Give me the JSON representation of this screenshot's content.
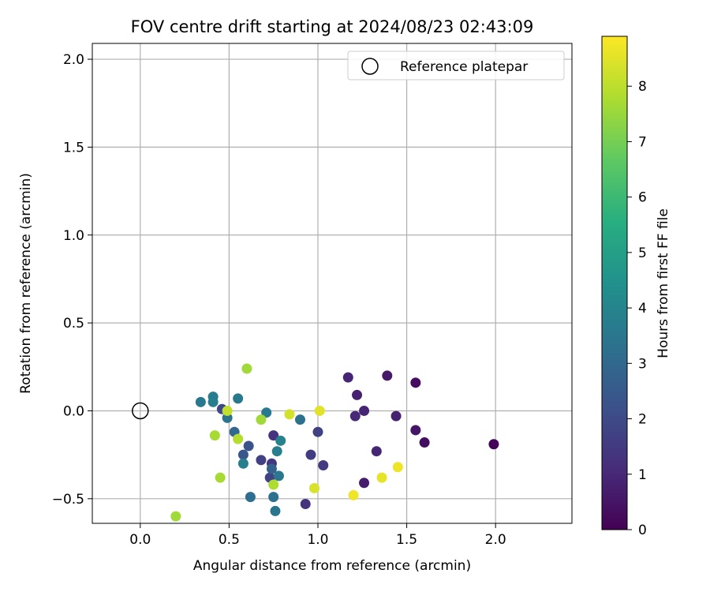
{
  "chart_data": {
    "type": "scatter",
    "title": "FOV centre drift starting at 2024/08/23 02:43:09",
    "xlabel": "Angular distance from reference (arcmin)",
    "ylabel": "Rotation from reference (arcmin)",
    "xlim": [
      -0.27,
      2.43
    ],
    "ylim": [
      -0.64,
      2.09
    ],
    "xticks": [
      "0.0",
      "0.5",
      "1.0",
      "1.5",
      "2.0"
    ],
    "yticks": [
      "−0.5",
      "0.0",
      "0.5",
      "1.0",
      "1.5",
      "2.0"
    ],
    "grid": true,
    "legend": {
      "position": "top-right",
      "entries": [
        "Reference platepar"
      ]
    },
    "colorbar": {
      "label": "Hours from first FF file",
      "range": [
        0,
        8.9
      ],
      "ticks": [
        "0",
        "1",
        "2",
        "3",
        "4",
        "5",
        "6",
        "7",
        "8"
      ],
      "colormap": "viridis"
    },
    "reference_point": {
      "x": 0.0,
      "y": 0.0
    },
    "points": [
      {
        "x": 1.99,
        "y": -0.19,
        "h": 0.1
      },
      {
        "x": 1.6,
        "y": -0.18,
        "h": 0.3
      },
      {
        "x": 1.55,
        "y": 0.16,
        "h": 0.3
      },
      {
        "x": 1.55,
        "y": -0.11,
        "h": 0.5
      },
      {
        "x": 1.39,
        "y": 0.2,
        "h": 0.6
      },
      {
        "x": 1.44,
        "y": -0.03,
        "h": 0.8
      },
      {
        "x": 1.33,
        "y": -0.23,
        "h": 0.9
      },
      {
        "x": 1.26,
        "y": 0.0,
        "h": 0.9
      },
      {
        "x": 1.26,
        "y": -0.41,
        "h": 0.7
      },
      {
        "x": 1.22,
        "y": 0.09,
        "h": 0.8
      },
      {
        "x": 1.21,
        "y": -0.03,
        "h": 1.0
      },
      {
        "x": 1.17,
        "y": 0.19,
        "h": 0.9
      },
      {
        "x": 0.93,
        "y": -0.53,
        "h": 1.3
      },
      {
        "x": 1.03,
        "y": -0.31,
        "h": 1.5
      },
      {
        "x": 0.96,
        "y": -0.25,
        "h": 1.6
      },
      {
        "x": 1.0,
        "y": -0.12,
        "h": 1.7
      },
      {
        "x": 0.75,
        "y": -0.14,
        "h": 1.3
      },
      {
        "x": 0.74,
        "y": -0.3,
        "h": 1.4
      },
      {
        "x": 0.73,
        "y": -0.38,
        "h": 1.8
      },
      {
        "x": 0.68,
        "y": -0.28,
        "h": 1.7
      },
      {
        "x": 0.46,
        "y": 0.01,
        "h": 1.9
      },
      {
        "x": 0.61,
        "y": -0.2,
        "h": 2.3
      },
      {
        "x": 0.58,
        "y": -0.25,
        "h": 2.4
      },
      {
        "x": 0.74,
        "y": -0.33,
        "h": 2.8
      },
      {
        "x": 0.53,
        "y": -0.12,
        "h": 3.0
      },
      {
        "x": 0.62,
        "y": -0.49,
        "h": 3.2
      },
      {
        "x": 0.75,
        "y": -0.49,
        "h": 3.3
      },
      {
        "x": 0.9,
        "y": -0.05,
        "h": 3.3
      },
      {
        "x": 0.49,
        "y": -0.04,
        "h": 3.4
      },
      {
        "x": 0.34,
        "y": 0.05,
        "h": 3.6
      },
      {
        "x": 0.41,
        "y": 0.08,
        "h": 3.7
      },
      {
        "x": 0.41,
        "y": 0.05,
        "h": 3.8
      },
      {
        "x": 0.55,
        "y": 0.07,
        "h": 3.6
      },
      {
        "x": 0.71,
        "y": -0.01,
        "h": 3.6
      },
      {
        "x": 0.78,
        "y": -0.37,
        "h": 3.5
      },
      {
        "x": 0.76,
        "y": -0.57,
        "h": 3.4
      },
      {
        "x": 0.77,
        "y": -0.23,
        "h": 3.8
      },
      {
        "x": 0.58,
        "y": -0.3,
        "h": 3.8
      },
      {
        "x": 0.79,
        "y": -0.17,
        "h": 3.9
      },
      {
        "x": 0.6,
        "y": 0.24,
        "h": 7.6
      },
      {
        "x": 0.42,
        "y": -0.14,
        "h": 7.7
      },
      {
        "x": 0.45,
        "y": -0.38,
        "h": 7.7
      },
      {
        "x": 0.2,
        "y": -0.6,
        "h": 7.6
      },
      {
        "x": 0.55,
        "y": -0.16,
        "h": 7.9
      },
      {
        "x": 0.68,
        "y": -0.05,
        "h": 7.6
      },
      {
        "x": 0.75,
        "y": -0.42,
        "h": 7.8
      },
      {
        "x": 0.49,
        "y": 0.0,
        "h": 8.1
      },
      {
        "x": 0.84,
        "y": -0.02,
        "h": 8.3
      },
      {
        "x": 0.98,
        "y": -0.44,
        "h": 8.4
      },
      {
        "x": 1.01,
        "y": 0.0,
        "h": 8.5
      },
      {
        "x": 1.2,
        "y": -0.48,
        "h": 8.7
      },
      {
        "x": 1.36,
        "y": -0.38,
        "h": 8.6
      },
      {
        "x": 1.45,
        "y": -0.32,
        "h": 8.7
      }
    ]
  }
}
